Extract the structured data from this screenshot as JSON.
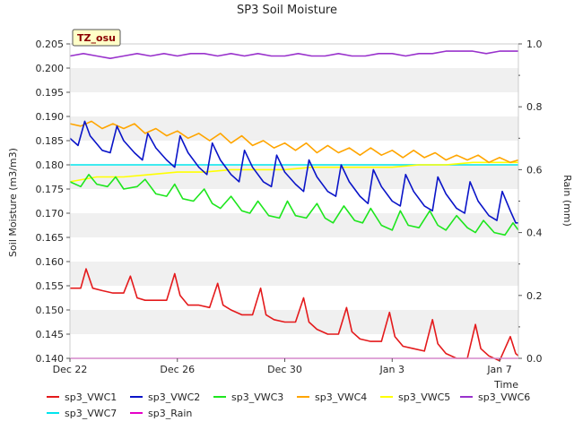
{
  "chart_data": {
    "type": "line",
    "title": "SP3 Soil Moisture",
    "xlabel": "Time",
    "ylabel": "Soil Moisture (m3/m3)",
    "y2label": "Rain (mm)",
    "station_label": "TZ_osu",
    "xlim": [
      0,
      16.7
    ],
    "ylim": [
      0.14,
      0.205
    ],
    "y2lim": [
      0.0,
      1.0
    ],
    "x_ticks": [
      {
        "x": 0,
        "label": "Dec 22"
      },
      {
        "x": 4,
        "label": "Dec 26"
      },
      {
        "x": 8,
        "label": "Dec 30"
      },
      {
        "x": 12,
        "label": "Jan 3"
      },
      {
        "x": 16,
        "label": "Jan 7"
      }
    ],
    "y_ticks": [
      "0.140",
      "0.145",
      "0.150",
      "0.155",
      "0.160",
      "0.165",
      "0.170",
      "0.175",
      "0.180",
      "0.185",
      "0.190",
      "0.195",
      "0.200",
      "0.205"
    ],
    "y2_ticks": [
      "0.0",
      "0.2",
      "0.4",
      "0.6",
      "0.8",
      "1.0"
    ],
    "grid_bands": true,
    "legend_position": "bottom",
    "series": [
      {
        "name": "sp3_VWC1",
        "color": "#e41a1c",
        "axis": "left",
        "x": [
          0.0,
          0.4,
          0.6,
          0.85,
          1.2,
          1.6,
          2.0,
          2.25,
          2.5,
          2.8,
          3.2,
          3.6,
          3.9,
          4.1,
          4.4,
          4.8,
          5.2,
          5.5,
          5.7,
          6.0,
          6.4,
          6.8,
          7.1,
          7.3,
          7.6,
          8.0,
          8.4,
          8.7,
          8.9,
          9.2,
          9.6,
          10.0,
          10.3,
          10.5,
          10.8,
          11.2,
          11.6,
          11.9,
          12.1,
          12.4,
          12.8,
          13.2,
          13.5,
          13.7,
          14.0,
          14.4,
          14.8,
          15.1,
          15.3,
          15.6,
          16.0,
          16.4,
          16.6,
          16.7
        ],
        "y": [
          0.1545,
          0.1545,
          0.1585,
          0.1545,
          0.154,
          0.1535,
          0.1535,
          0.157,
          0.1525,
          0.152,
          0.152,
          0.152,
          0.1575,
          0.153,
          0.151,
          0.151,
          0.1505,
          0.1555,
          0.151,
          0.15,
          0.149,
          0.149,
          0.1545,
          0.149,
          0.148,
          0.1475,
          0.1475,
          0.1525,
          0.1475,
          0.146,
          0.145,
          0.145,
          0.1505,
          0.1455,
          0.144,
          0.1435,
          0.1435,
          0.1495,
          0.1445,
          0.1425,
          0.142,
          0.1415,
          0.148,
          0.143,
          0.141,
          0.14,
          0.14,
          0.147,
          0.142,
          0.1405,
          0.1395,
          0.1445,
          0.141,
          0.1405
        ]
      },
      {
        "name": "sp3_VWC2",
        "color": "#0a14c8",
        "axis": "left",
        "x": [
          0.0,
          0.3,
          0.55,
          0.75,
          1.2,
          1.5,
          1.75,
          2.0,
          2.4,
          2.7,
          2.9,
          3.2,
          3.6,
          3.9,
          4.1,
          4.4,
          4.8,
          5.1,
          5.3,
          5.6,
          6.0,
          6.3,
          6.5,
          6.8,
          7.2,
          7.5,
          7.7,
          8.0,
          8.4,
          8.7,
          8.9,
          9.2,
          9.6,
          9.9,
          10.1,
          10.4,
          10.8,
          11.1,
          11.3,
          11.6,
          12.0,
          12.3,
          12.5,
          12.8,
          13.2,
          13.5,
          13.7,
          14.0,
          14.4,
          14.7,
          14.9,
          15.2,
          15.6,
          15.9,
          16.1,
          16.4,
          16.6,
          16.7
        ],
        "y": [
          0.1855,
          0.184,
          0.189,
          0.186,
          0.183,
          0.1825,
          0.188,
          0.185,
          0.1825,
          0.181,
          0.1865,
          0.1835,
          0.181,
          0.1795,
          0.186,
          0.1825,
          0.1795,
          0.178,
          0.1845,
          0.181,
          0.178,
          0.1765,
          0.183,
          0.1795,
          0.1765,
          0.1755,
          0.182,
          0.1785,
          0.176,
          0.1745,
          0.181,
          0.1775,
          0.1745,
          0.1735,
          0.18,
          0.1765,
          0.1735,
          0.172,
          0.179,
          0.1755,
          0.1725,
          0.1715,
          0.178,
          0.1745,
          0.1715,
          0.1705,
          0.1775,
          0.174,
          0.171,
          0.17,
          0.1765,
          0.1725,
          0.1695,
          0.1685,
          0.1745,
          0.1705,
          0.168,
          0.168
        ]
      },
      {
        "name": "sp3_VWC3",
        "color": "#1ee61e",
        "axis": "left",
        "x": [
          0.0,
          0.4,
          0.7,
          1.0,
          1.4,
          1.7,
          2.0,
          2.5,
          2.8,
          3.2,
          3.6,
          3.9,
          4.2,
          4.6,
          5.0,
          5.3,
          5.6,
          6.0,
          6.4,
          6.7,
          7.0,
          7.4,
          7.8,
          8.1,
          8.4,
          8.8,
          9.2,
          9.5,
          9.8,
          10.2,
          10.6,
          10.9,
          11.2,
          11.6,
          12.0,
          12.3,
          12.6,
          13.0,
          13.4,
          13.7,
          14.0,
          14.4,
          14.8,
          15.1,
          15.4,
          15.8,
          16.2,
          16.5,
          16.7
        ],
        "y": [
          0.1765,
          0.1755,
          0.178,
          0.176,
          0.1755,
          0.1775,
          0.175,
          0.1755,
          0.177,
          0.174,
          0.1735,
          0.176,
          0.173,
          0.1725,
          0.175,
          0.172,
          0.171,
          0.1735,
          0.1705,
          0.17,
          0.1725,
          0.1695,
          0.169,
          0.1725,
          0.1695,
          0.169,
          0.172,
          0.169,
          0.168,
          0.1715,
          0.1685,
          0.168,
          0.171,
          0.1675,
          0.1665,
          0.1705,
          0.1675,
          0.167,
          0.1705,
          0.1675,
          0.1665,
          0.1695,
          0.167,
          0.166,
          0.1685,
          0.166,
          0.1655,
          0.168,
          0.1665
        ]
      },
      {
        "name": "sp3_VWC4",
        "color": "#ffa500",
        "axis": "left",
        "x": [
          0.0,
          0.4,
          0.8,
          1.2,
          1.6,
          2.0,
          2.4,
          2.8,
          3.2,
          3.6,
          4.0,
          4.4,
          4.8,
          5.2,
          5.6,
          6.0,
          6.4,
          6.8,
          7.2,
          7.6,
          8.0,
          8.4,
          8.8,
          9.2,
          9.6,
          10.0,
          10.4,
          10.8,
          11.2,
          11.6,
          12.0,
          12.4,
          12.8,
          13.2,
          13.6,
          14.0,
          14.4,
          14.8,
          15.2,
          15.6,
          16.0,
          16.4,
          16.7
        ],
        "y": [
          0.1885,
          0.188,
          0.189,
          0.1875,
          0.1885,
          0.1875,
          0.1885,
          0.1865,
          0.1875,
          0.186,
          0.187,
          0.1855,
          0.1865,
          0.185,
          0.1865,
          0.1845,
          0.186,
          0.184,
          0.185,
          0.1835,
          0.1845,
          0.183,
          0.1845,
          0.1825,
          0.184,
          0.1825,
          0.1835,
          0.182,
          0.1835,
          0.182,
          0.183,
          0.1815,
          0.183,
          0.1815,
          0.1825,
          0.181,
          0.182,
          0.181,
          0.182,
          0.1805,
          0.1815,
          0.1805,
          0.181
        ]
      },
      {
        "name": "sp3_VWC5",
        "color": "#ffff00",
        "axis": "left",
        "x": [
          0.0,
          1.0,
          2.0,
          3.0,
          4.0,
          5.0,
          6.0,
          7.0,
          8.0,
          9.0,
          10.0,
          11.0,
          12.0,
          13.0,
          14.0,
          15.0,
          16.0,
          16.7
        ],
        "y": [
          0.1765,
          0.1775,
          0.1775,
          0.178,
          0.1785,
          0.1785,
          0.179,
          0.179,
          0.179,
          0.1795,
          0.1795,
          0.1795,
          0.1795,
          0.18,
          0.18,
          0.1805,
          0.1805,
          0.1805
        ]
      },
      {
        "name": "sp3_VWC6",
        "color": "#9932cc",
        "axis": "left",
        "x": [
          0.0,
          0.5,
          1.0,
          1.5,
          2.0,
          2.5,
          3.0,
          3.5,
          4.0,
          4.5,
          5.0,
          5.5,
          6.0,
          6.5,
          7.0,
          7.5,
          8.0,
          8.5,
          9.0,
          9.5,
          10.0,
          10.5,
          11.0,
          11.5,
          12.0,
          12.5,
          13.0,
          13.5,
          14.0,
          14.5,
          15.0,
          15.5,
          16.0,
          16.5,
          16.7
        ],
        "y": [
          0.2025,
          0.203,
          0.2025,
          0.202,
          0.2025,
          0.203,
          0.2025,
          0.203,
          0.2025,
          0.203,
          0.203,
          0.2025,
          0.203,
          0.2025,
          0.203,
          0.2025,
          0.2025,
          0.203,
          0.2025,
          0.2025,
          0.203,
          0.2025,
          0.2025,
          0.203,
          0.203,
          0.2025,
          0.203,
          0.203,
          0.2035,
          0.2035,
          0.2035,
          0.203,
          0.2035,
          0.2035,
          0.2035
        ]
      },
      {
        "name": "sp3_VWC7",
        "color": "#00e5ee",
        "axis": "left",
        "x": [
          0.0,
          2.0,
          4.0,
          6.0,
          8.0,
          10.0,
          12.0,
          14.0,
          16.0,
          16.7
        ],
        "y": [
          0.18,
          0.18,
          0.18,
          0.18,
          0.18,
          0.18,
          0.18,
          0.18,
          0.18,
          0.18
        ]
      },
      {
        "name": "sp3_Rain",
        "color": "#e600c8",
        "axis": "right",
        "x": [
          0.0,
          16.7
        ],
        "y": [
          0.0,
          0.0
        ]
      }
    ]
  }
}
